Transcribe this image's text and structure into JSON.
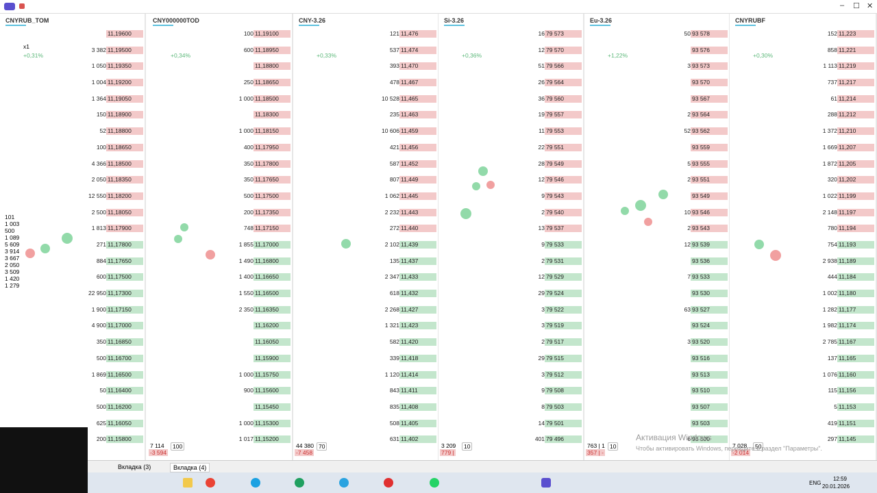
{
  "window": {
    "controls": [
      "–",
      "☐",
      "✕"
    ]
  },
  "panels": [
    {
      "title": "CNYRUB_TOM",
      "change": "+0,31%",
      "scale": "x1",
      "side_volumes": [
        "101",
        "1 003",
        "500",
        "1 089",
        "5 609",
        "3 914",
        "3 667",
        "2 050",
        "3 509",
        "1 420",
        "1 279"
      ],
      "ladder": [
        {
          "price": "11,19600"
        },
        {
          "volume": "3 382",
          "price": "11,19500"
        },
        {
          "volume": "1 050",
          "price": "11,19350"
        },
        {
          "volume": "1 004",
          "price": "11,19200"
        },
        {
          "volume": "1 364",
          "price": "11,19050"
        },
        {
          "volume": "150",
          "price": "11,18900"
        },
        {
          "volume": "52",
          "price": "11,18800"
        },
        {
          "volume": "100",
          "price": "11,18650"
        },
        {
          "volume": "4 366",
          "price": "11,18500"
        },
        {
          "volume": "2 050",
          "price": "11,18350"
        },
        {
          "volume": "12 550",
          "price": "11,18200"
        },
        {
          "volume": "2 500",
          "price": "11,18050"
        },
        {
          "volume": "1 813",
          "price": "11,17900"
        },
        {
          "volume": "271",
          "price": "11,17800"
        },
        {
          "volume": "884",
          "price": "11,17650"
        },
        {
          "volume": "600",
          "price": "11,17500"
        },
        {
          "volume": "22 950",
          "price": "11,17300"
        },
        {
          "volume": "1 900",
          "price": "11,17150"
        },
        {
          "volume": "4 900",
          "price": "11,17000"
        },
        {
          "volume": "350",
          "price": "11,16850"
        },
        {
          "volume": "500",
          "price": "11,16700"
        },
        {
          "volume": "1 869",
          "price": "11,16500"
        },
        {
          "volume": "50",
          "price": "11,16400"
        },
        {
          "volume": "500",
          "price": "11,16200"
        },
        {
          "volume": "625",
          "price": "11,16050"
        },
        {
          "volume": "200",
          "price": "11,15800"
        }
      ]
    },
    {
      "title": "CNY000000TOD",
      "change": "+0,34%",
      "footer": [
        "7 114",
        "-3 594",
        "100"
      ],
      "ladder": [
        {
          "volume": "100",
          "price": "11,19100"
        },
        {
          "volume": "600",
          "price": "11,18950"
        },
        {
          "price": "11,18800"
        },
        {
          "volume": "250",
          "price": "11,18650"
        },
        {
          "volume": "1 000",
          "price": "11,18500"
        },
        {
          "price": "11,18300"
        },
        {
          "volume": "1 000",
          "price": "11,18150"
        },
        {
          "volume": "400",
          "price": "11,17950"
        },
        {
          "volume": "350",
          "price": "11,17800"
        },
        {
          "volume": "350",
          "price": "11,17650"
        },
        {
          "volume": "500",
          "price": "11,17500"
        },
        {
          "volume": "200",
          "price": "11,17350"
        },
        {
          "volume": "748",
          "price": "11,17150"
        },
        {
          "volume": "1 855",
          "price": "11,17000"
        },
        {
          "volume": "1 490",
          "price": "11,16800"
        },
        {
          "volume": "1 400",
          "price": "11,16650"
        },
        {
          "volume": "1 550",
          "price": "11,16500"
        },
        {
          "volume": "2 350",
          "price": "11,16350"
        },
        {
          "price": "11,16200"
        },
        {
          "price": "11,16050"
        },
        {
          "price": "11,15900"
        },
        {
          "volume": "1 000",
          "price": "11,15750"
        },
        {
          "volume": "900",
          "price": "11,15600"
        },
        {
          "price": "11,15450"
        },
        {
          "volume": "1 000",
          "price": "11,15300"
        },
        {
          "volume": "1 017",
          "price": "11,15200"
        }
      ]
    },
    {
      "title": "CNY-3.26",
      "change": "+0,33%",
      "footer": [
        "44 380",
        "-7 458",
        "70"
      ],
      "ladder": [
        {
          "volume": "121",
          "price": "11,476"
        },
        {
          "volume": "537",
          "price": "11,474"
        },
        {
          "volume": "393",
          "price": "11,470"
        },
        {
          "volume": "478",
          "price": "11,467"
        },
        {
          "volume": "10 528",
          "price": "11,465"
        },
        {
          "volume": "235",
          "price": "11,463"
        },
        {
          "volume": "10 606",
          "price": "11,459"
        },
        {
          "volume": "421",
          "price": "11,456"
        },
        {
          "volume": "587",
          "price": "11,452"
        },
        {
          "volume": "807",
          "price": "11,449"
        },
        {
          "volume": "1 062",
          "price": "11,445"
        },
        {
          "volume": "2 232",
          "price": "11,443"
        },
        {
          "volume": "272",
          "price": "11,440"
        },
        {
          "volume": "2 102",
          "price": "11,439"
        },
        {
          "volume": "135",
          "price": "11,437"
        },
        {
          "volume": "2 347",
          "price": "11,433"
        },
        {
          "volume": "618",
          "price": "11,432"
        },
        {
          "volume": "2 268",
          "price": "11,427"
        },
        {
          "volume": "1 321",
          "price": "11,423"
        },
        {
          "volume": "582",
          "price": "11,420"
        },
        {
          "volume": "339",
          "price": "11,418"
        },
        {
          "volume": "1 120",
          "price": "11,414"
        },
        {
          "volume": "843",
          "price": "11,411"
        },
        {
          "volume": "835",
          "price": "11,408"
        },
        {
          "volume": "508",
          "price": "11,405"
        },
        {
          "volume": "631",
          "price": "11,402"
        }
      ]
    },
    {
      "title": "Si-3.26",
      "change": "+0,36%",
      "footer": [
        "3 209",
        "779 |",
        "10"
      ],
      "ladder": [
        {
          "volume": "16",
          "price": "79 573"
        },
        {
          "volume": "12",
          "price": "79 570"
        },
        {
          "volume": "51",
          "price": "79 566"
        },
        {
          "volume": "26",
          "price": "79 564"
        },
        {
          "volume": "36",
          "price": "79 560"
        },
        {
          "volume": "19",
          "price": "79 557"
        },
        {
          "volume": "11",
          "price": "79 553"
        },
        {
          "volume": "22",
          "price": "79 551"
        },
        {
          "volume": "28",
          "price": "79 549"
        },
        {
          "volume": "12",
          "price": "79 546"
        },
        {
          "volume": "9",
          "price": "79 543"
        },
        {
          "volume": "2",
          "price": "79 540"
        },
        {
          "volume": "13",
          "price": "79 537"
        },
        {
          "volume": "9",
          "price": "79 533"
        },
        {
          "volume": "2",
          "price": "79 531"
        },
        {
          "volume": "12",
          "price": "79 529"
        },
        {
          "volume": "29",
          "price": "79 524"
        },
        {
          "volume": "3",
          "price": "79 522"
        },
        {
          "volume": "3",
          "price": "79 519"
        },
        {
          "volume": "2",
          "price": "79 517"
        },
        {
          "volume": "29",
          "price": "79 515"
        },
        {
          "volume": "3",
          "price": "79 512"
        },
        {
          "volume": "9",
          "price": "79 508"
        },
        {
          "volume": "8",
          "price": "79 503"
        },
        {
          "volume": "14",
          "price": "79 501"
        },
        {
          "volume": "401",
          "price": "79 496"
        }
      ]
    },
    {
      "title": "Eu-3.26",
      "change": "+1,22%",
      "footer": [
        "763 | 1",
        "357 | -",
        "10"
      ],
      "ladder": [
        {
          "volume": "50",
          "price": "93 578"
        },
        {
          "price": "93 576"
        },
        {
          "volume": "3",
          "price": "93 573"
        },
        {
          "price": "93 570"
        },
        {
          "price": "93 567"
        },
        {
          "volume": "2",
          "price": "93 564"
        },
        {
          "volume": "52",
          "price": "93 562"
        },
        {
          "price": "93 559"
        },
        {
          "volume": "5",
          "price": "93 555"
        },
        {
          "volume": "2",
          "price": "93 551"
        },
        {
          "price": "93 549"
        },
        {
          "volume": "10",
          "price": "93 546"
        },
        {
          "volume": "2",
          "price": "93 543"
        },
        {
          "volume": "12",
          "price": "93 539"
        },
        {
          "price": "93 536"
        },
        {
          "volume": "7",
          "price": "93 533"
        },
        {
          "price": "93 530"
        },
        {
          "volume": "63",
          "price": "93 527"
        },
        {
          "price": "93 524"
        },
        {
          "volume": "3",
          "price": "93 520"
        },
        {
          "price": "93 516"
        },
        {
          "price": "93 513"
        },
        {
          "price": "93 510"
        },
        {
          "price": "93 507"
        },
        {
          "price": "93 503"
        },
        {
          "volume": "6",
          "price": "93 500"
        }
      ]
    },
    {
      "title": "CNYRUBF",
      "change": "+0,30%",
      "footer": [
        "7 028",
        "-2 014",
        "50"
      ],
      "ladder": [
        {
          "volume": "152",
          "price": "11,223"
        },
        {
          "volume": "858",
          "price": "11,221"
        },
        {
          "volume": "1 113",
          "price": "11,219"
        },
        {
          "volume": "737",
          "price": "11,217"
        },
        {
          "volume": "61",
          "price": "11,214"
        },
        {
          "volume": "288",
          "price": "11,212"
        },
        {
          "volume": "1 372",
          "price": "11,210"
        },
        {
          "volume": "1 669",
          "price": "11,207"
        },
        {
          "volume": "1 872",
          "price": "11,205"
        },
        {
          "volume": "320",
          "price": "11,202"
        },
        {
          "volume": "1 022",
          "price": "11,199"
        },
        {
          "volume": "2 148",
          "price": "11,197"
        },
        {
          "volume": "780",
          "price": "11,194"
        },
        {
          "volume": "754",
          "price": "11,193"
        },
        {
          "volume": "2 938",
          "price": "11,189"
        },
        {
          "volume": "444",
          "price": "11,184"
        },
        {
          "volume": "1 002",
          "price": "11,180"
        },
        {
          "volume": "1 282",
          "price": "11,177"
        },
        {
          "volume": "1 982",
          "price": "11,174"
        },
        {
          "volume": "2 785",
          "price": "11,167"
        },
        {
          "volume": "137",
          "price": "11,165"
        },
        {
          "volume": "1 076",
          "price": "11,160"
        },
        {
          "volume": "115",
          "price": "11,156"
        },
        {
          "volume": "5",
          "price": "11,153"
        },
        {
          "volume": "419",
          "price": "11,151"
        },
        {
          "volume": "297",
          "price": "11,145"
        }
      ]
    }
  ],
  "tabs": [
    "Вкладка (3)",
    "Вкладка (4)"
  ],
  "watermark": {
    "title": "Активация Windows",
    "text": "Чтобы активировать Windows, перейдите в раздел \"Параметры\"."
  },
  "tray": {
    "language": "ENG",
    "time": "12:59",
    "date": "20.01.2026"
  }
}
